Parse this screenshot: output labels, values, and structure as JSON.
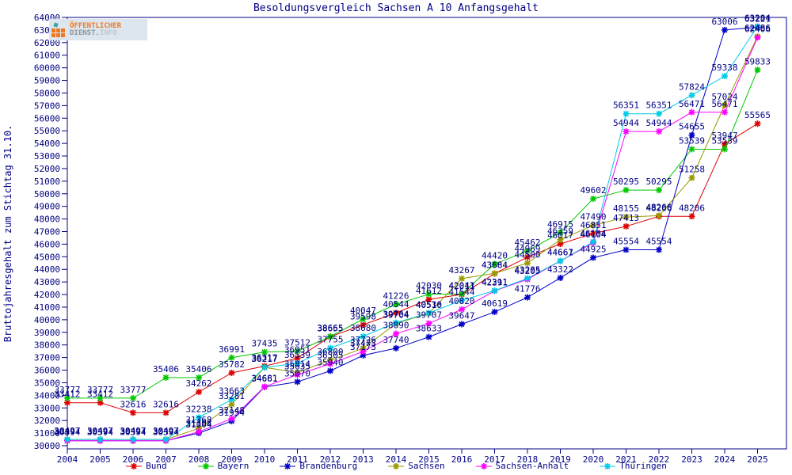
{
  "title": "Besoldungsvergleich Sachsen A 10 Anfangsgehalt",
  "logo": {
    "line1": "ÖFFENTLICHER",
    "line2_part1": "DIENST.",
    "line2_part2": "INFO"
  },
  "colors": {
    "text": "#000084",
    "frame": "#000084",
    "background": "#ffffff",
    "logo_orange": "#f07820",
    "logo_gray": "#8a949c"
  },
  "chart_data": {
    "type": "line",
    "title": "Besoldungsvergleich Sachsen A 10 Anfangsgehalt",
    "ylabel": "Bruttojahresgehalt zum Stichtag 31.10.",
    "xlabel": "",
    "ylim": [
      30000,
      64000
    ],
    "ytick_step": 1000,
    "grid": false,
    "legend_position": "bottom",
    "point_labels": true,
    "x": [
      2004,
      2005,
      2006,
      2007,
      2008,
      2009,
      2010,
      2011,
      2012,
      2013,
      2014,
      2015,
      2016,
      2017,
      2018,
      2019,
      2020,
      2021,
      2022,
      2023,
      2024,
      2025
    ],
    "series": [
      {
        "name": "Bund",
        "color": "#dd0000",
        "values": [
          33412,
          33412,
          32616,
          32616,
          34262,
          35782,
          36317,
          36951,
          38655,
          39598,
          40544,
          41612,
          42011,
          43664,
          44969,
          46017,
          46851,
          47413,
          48206,
          48206,
          53947,
          55565
        ]
      },
      {
        "name": "Bayern",
        "color": "#00c800",
        "values": [
          33777,
          33777,
          33777,
          35406,
          35406,
          36991,
          37435,
          37512,
          38665,
          40047,
          41226,
          42030,
          42043,
          44420,
          45462,
          46915,
          49602,
          50295,
          50295,
          53539,
          53539,
          59833
        ]
      },
      {
        "name": "Brandenburg",
        "color": "#0000c8",
        "values": [
          30394,
          30394,
          30394,
          30394,
          31004,
          31954,
          34661,
          35070,
          35940,
          37173,
          37740,
          38633,
          39647,
          40619,
          41776,
          43322,
          44925,
          45554,
          45554,
          54655,
          63006,
          63221
        ]
      },
      {
        "name": "Sachsen",
        "color": "#999900",
        "values": [
          30497,
          30497,
          30497,
          30497,
          31368,
          33281,
          36217,
          35814,
          36800,
          37726,
          39704,
          40510,
          43267,
          43684,
          44500,
          46359,
          47490,
          48155,
          48266,
          51258,
          57024,
          62486
        ]
      },
      {
        "name": "Sachsen-Anhalt",
        "color": "#ff00ff",
        "values": [
          30394,
          30394,
          30394,
          30394,
          31104,
          32148,
          34681,
          35635,
          36505,
          37473,
          38890,
          39707,
          40820,
          42291,
          43205,
          44661,
          46104,
          54944,
          54944,
          56471,
          56471,
          62406
        ]
      },
      {
        "name": "Thüringen",
        "color": "#00cce6",
        "values": [
          30497,
          30497,
          30497,
          30497,
          32238,
          33663,
          36217,
          36539,
          37755,
          38680,
          39764,
          40536,
          41544,
          42311,
          43285,
          44667,
          46184,
          56351,
          56351,
          57824,
          59338,
          63284
        ]
      }
    ]
  }
}
